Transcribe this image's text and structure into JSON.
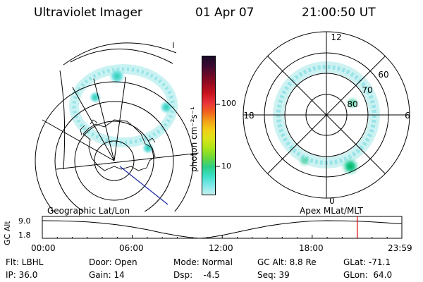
{
  "header": {
    "title": "Ultraviolet Imager",
    "date": "01 Apr 07",
    "time": "21:00:50 UT"
  },
  "colorbar": {
    "unit_label": "photon cm⁻²s⁻¹",
    "ticks": [
      "100",
      "10"
    ],
    "colors_top_to_bottom": [
      "#1a0a2a",
      "#3a0a30",
      "#6a0a28",
      "#9a0a20",
      "#c8141e",
      "#e8303a",
      "#f0601e",
      "#f2a018",
      "#f2d018",
      "#d8e418",
      "#a8e418",
      "#6cd83a",
      "#2ccf86",
      "#3ee0c8",
      "#7fe8e8",
      "#c6f0f0"
    ]
  },
  "polar_plot": {
    "clock_labels": [
      "12",
      "18",
      "6",
      "0"
    ],
    "lat_labels": [
      "60",
      "70",
      "80"
    ]
  },
  "footer": {
    "left_title": "Geographic Lat/Lon",
    "right_title": "Apex MLat/MLT",
    "alt_label": "GC Alt",
    "alt_ticks": [
      "9.0",
      "1.8"
    ],
    "time_ticks": [
      "00:00",
      "06:00",
      "12:00",
      "18:00",
      "23:59"
    ],
    "info_rows": [
      [
        "Flt: LBHL",
        "Door: Open",
        "Mode: Normal",
        "GC Alt: 8.8 Re",
        "GLat: -71.1"
      ],
      [
        "IP: 36.0",
        "Gain: 14",
        "Dsp:    -4.5",
        "Seq: 39",
        "GLon:  64.0"
      ]
    ]
  },
  "chart_data": {
    "type": "line",
    "title": "",
    "xlabel": "",
    "ylabel": "GC Alt",
    "x_hours": [
      0,
      1,
      2,
      3,
      4,
      5,
      6,
      7,
      8,
      9,
      10,
      10.5,
      11,
      12,
      13,
      14,
      15,
      16,
      17,
      18,
      19,
      20,
      21,
      22,
      23,
      23.98
    ],
    "y_re": [
      9.0,
      8.95,
      8.8,
      8.5,
      8.0,
      7.3,
      6.4,
      5.3,
      4.0,
      2.9,
      2.0,
      1.8,
      2.0,
      3.0,
      4.3,
      5.6,
      6.8,
      7.7,
      8.4,
      8.85,
      9.0,
      8.95,
      8.8,
      8.5,
      8.1,
      7.7
    ],
    "ylim": [
      1.8,
      9.0
    ],
    "xlim": [
      0,
      23.98
    ],
    "current_time_marker_hours": 21.01,
    "marker_color": "#e00000"
  }
}
